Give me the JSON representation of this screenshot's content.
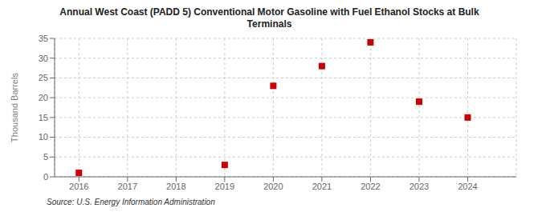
{
  "chart_data": {
    "type": "scatter",
    "title": "Annual West Coast (PADD 5) Conventional Motor Gasoline with Fuel Ethanol Stocks at Bulk\nTerminals",
    "ylabel": "Thousand Barrels",
    "annotation": "Source: U.S. Energy Information Administration",
    "x": [
      2016,
      2019,
      2020,
      2021,
      2022,
      2023,
      2024
    ],
    "values": [
      1,
      3,
      23,
      28,
      34,
      19,
      15
    ],
    "color": "#cc0000",
    "marker": "square",
    "xlim": [
      2015.5,
      2025.0
    ],
    "xticks": [
      2016,
      2017,
      2018,
      2019,
      2020,
      2021,
      2022,
      2023,
      2024
    ],
    "ylim": [
      0,
      35
    ],
    "yticks": [
      0,
      5,
      10,
      15,
      20,
      25,
      30,
      35
    ],
    "grid": true
  }
}
